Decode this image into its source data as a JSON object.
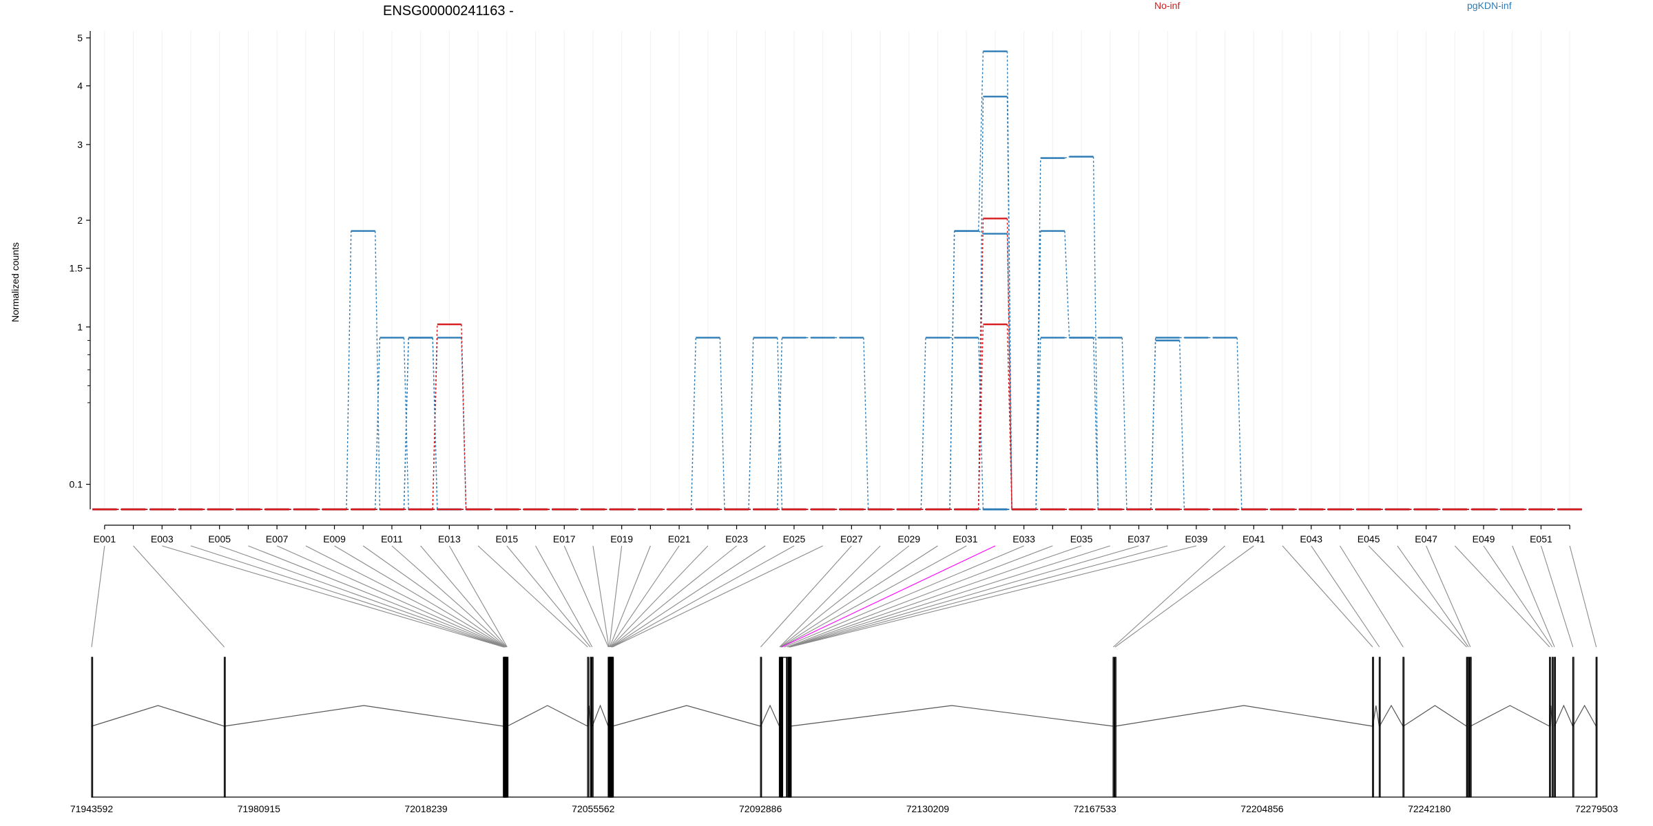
{
  "chart_data": {
    "type": "line",
    "title": "ENSG00000241163 -",
    "ylabel": "Normalized counts",
    "y_scale": "log1p",
    "ylim": [
      0,
      5
    ],
    "yticks": [
      {
        "label": "5",
        "value": 5
      },
      {
        "label": "4",
        "value": 4
      },
      {
        "label": "3",
        "value": 3
      },
      {
        "label": "2",
        "value": 2
      },
      {
        "label": "1.5",
        "value": 1.5
      },
      {
        "label": "1",
        "value": 1
      },
      {
        "label": "0.1",
        "value": 0.1
      }
    ],
    "legend": [
      {
        "name": "No-inf",
        "color": "#d7191c",
        "placement": "top-center"
      },
      {
        "name": "pgKDN-inf",
        "color": "#2c7bb6",
        "placement": "top-right"
      }
    ],
    "exons": [
      "E001",
      "E002",
      "E003",
      "E004",
      "E005",
      "E006",
      "E007",
      "E008",
      "E009",
      "E010",
      "E011",
      "E012",
      "E013",
      "E014",
      "E015",
      "E016",
      "E017",
      "E018",
      "E019",
      "E020",
      "E021",
      "E022",
      "E023",
      "E024",
      "E025",
      "E026",
      "E027",
      "E028",
      "E029",
      "E030",
      "E031",
      "E032",
      "E033",
      "E034",
      "E035",
      "E036",
      "E037",
      "E038",
      "E039",
      "E040",
      "E041",
      "E042",
      "E043",
      "E044",
      "E045",
      "E046",
      "E047",
      "E048",
      "E049",
      "E050",
      "E051",
      "E052"
    ],
    "exon_tick_labels": [
      "E001",
      "E003",
      "E005",
      "E007",
      "E009",
      "E011",
      "E013",
      "E015",
      "E017",
      "E019",
      "E021",
      "E023",
      "E025",
      "E027",
      "E029",
      "E031",
      "E033",
      "E035",
      "E037",
      "E039",
      "E041",
      "E043",
      "E045",
      "E047",
      "E049",
      "E051"
    ],
    "highlight_exon": "E032",
    "highlight_color": "#ff00ff",
    "series": [
      {
        "name": "No-inf",
        "color": "#d7191c",
        "samples": [
          {
            "nonzero": {
              "E013": 1.02,
              "E032": 2.02
            }
          },
          {
            "nonzero": {
              "E032": 1.02
            }
          }
        ]
      },
      {
        "name": "pgKDN-inf",
        "color": "#2c7bb6",
        "samples": [
          {
            "nonzero": {
              "E010": 1.88,
              "E031": 1.88,
              "E032": 4.7,
              "E034": 2.8,
              "E035": 2.82
            }
          },
          {
            "nonzero": {
              "E011": 0.92,
              "E013": 0.92,
              "E032": 3.8,
              "E034": 1.88,
              "E035": 0.92
            }
          },
          {
            "nonzero": {
              "E012": 0.92,
              "E025": 0.92,
              "E026": 0.92,
              "E027": 0.92,
              "E031": 1.88,
              "E032": 1.85
            }
          },
          {
            "nonzero": {
              "E022": 0.92,
              "E024": 0.92,
              "E030": 0.92,
              "E031": 0.92,
              "E034": 0.92,
              "E035": 0.92,
              "E036": 0.92
            }
          },
          {
            "nonzero": {
              "E038": 0.92,
              "E039": 0.92,
              "E040": 0.92,
              "E012": 0.92
            }
          },
          {
            "nonzero": {
              "E038": 0.9
            }
          }
        ]
      }
    ],
    "genomic_axis": {
      "range": [
        71943592,
        72279503
      ],
      "tick_labels": [
        "71943592",
        "71980915",
        "72018239",
        "72055562",
        "72092886",
        "72130209",
        "72167533",
        "72204856",
        "72242180",
        "72279503"
      ]
    },
    "exon_coords": [
      [
        71943592,
        71943600
      ],
      [
        71973200,
        71973208
      ],
      [
        72035500,
        72035540
      ],
      [
        72035560,
        72035600
      ],
      [
        72035620,
        72035660
      ],
      [
        72035680,
        72035720
      ],
      [
        72035740,
        72035800
      ],
      [
        72035820,
        72035880
      ],
      [
        72035900,
        72035960
      ],
      [
        72036000,
        72036060
      ],
      [
        72036100,
        72036150
      ],
      [
        72036200,
        72036260
      ],
      [
        72036300,
        72036380
      ],
      [
        72054300,
        72054360
      ],
      [
        72054900,
        72054960
      ],
      [
        72055300,
        72055360
      ],
      [
        72058900,
        72058980
      ],
      [
        72059000,
        72059080
      ],
      [
        72059100,
        72059200
      ],
      [
        72059220,
        72059300
      ],
      [
        72059320,
        72059400
      ],
      [
        72059420,
        72059500
      ],
      [
        72059520,
        72059600
      ],
      [
        72059620,
        72059700
      ],
      [
        72059720,
        72059800
      ],
      [
        72059820,
        72059900
      ],
      [
        72092900,
        72092960
      ],
      [
        72097100,
        72097200
      ],
      [
        72097260,
        72097360
      ],
      [
        72097400,
        72097480
      ],
      [
        72097500,
        72097600
      ],
      [
        72097620,
        72097700
      ],
      [
        72097720,
        72098700
      ],
      [
        72098800,
        72098900
      ],
      [
        72099100,
        72099180
      ],
      [
        72099200,
        72099300
      ],
      [
        72099320,
        72099400
      ],
      [
        72099420,
        72099500
      ],
      [
        72099520,
        72099600
      ],
      [
        72171600,
        72171680
      ],
      [
        72172000,
        72172080
      ],
      [
        72229500,
        72229560
      ],
      [
        72231000,
        72231080
      ],
      [
        72236300,
        72236380
      ],
      [
        72250500,
        72250560
      ],
      [
        72250900,
        72250960
      ],
      [
        72251300,
        72251380
      ],
      [
        72269000,
        72269060
      ],
      [
        72269600,
        72269680
      ],
      [
        72270100,
        72270160
      ],
      [
        72274200,
        72274260
      ],
      [
        72279400,
        72279503
      ]
    ]
  }
}
